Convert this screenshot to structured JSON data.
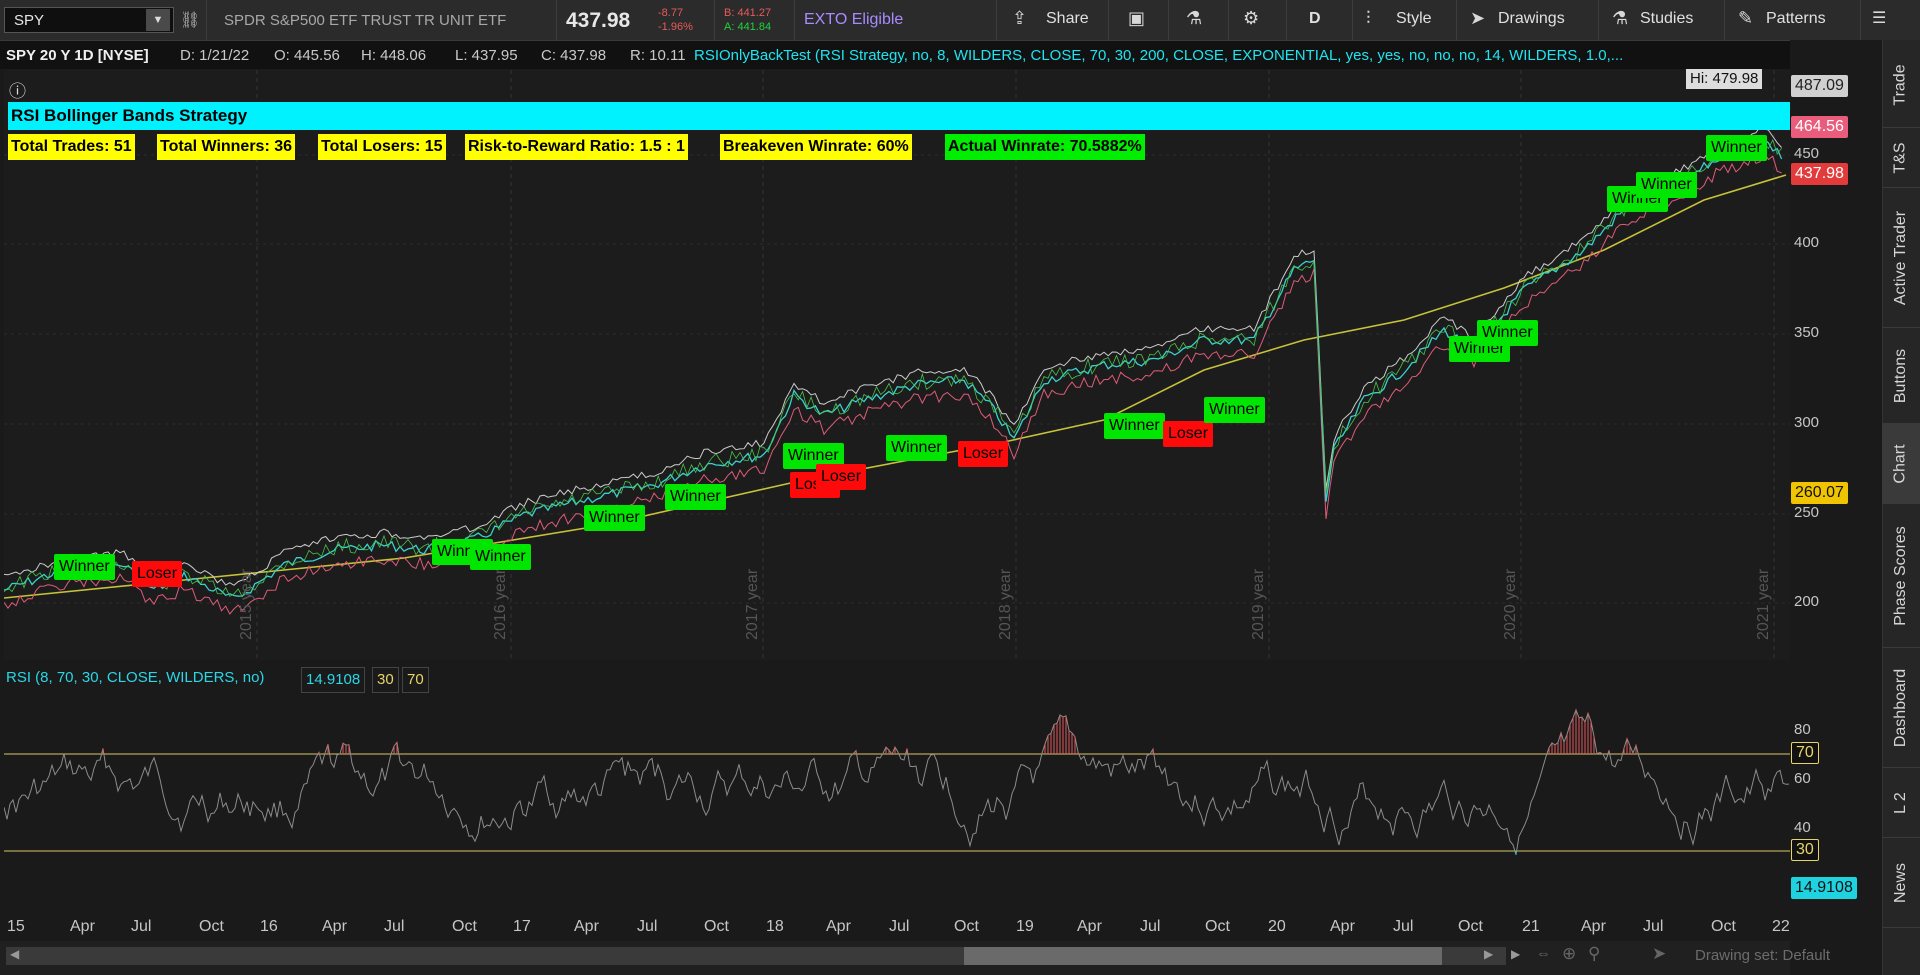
{
  "toolbar": {
    "symbol": "SPY",
    "description": "SPDR S&P500 ETF TRUST TR UNIT ETF",
    "last_price": "437.98",
    "net_change": "-8.77",
    "pct_change": "-1.96%",
    "bid": "B: 441.27",
    "ask": "A: 441.84",
    "exto": "EXTO Eligible",
    "share": "Share",
    "aggregation": "D",
    "style": "Style",
    "drawings": "Drawings",
    "studies": "Studies",
    "patterns": "Patterns",
    "colors": {
      "bid": "#e85a5a",
      "ask": "#1fd33e",
      "exto": "#a98bff"
    }
  },
  "info_line": {
    "symbol_period": "SPY 20 Y 1D [NYSE]",
    "date": "D: 1/21/22",
    "open": "O: 445.56",
    "high": "H: 448.06",
    "low": "L: 437.95",
    "close": "C: 437.98",
    "range": "R: 10.11",
    "strategy": "RSIOnlyBackTest (RSI Strategy, no, 8, WILDERS, CLOSE, 70, 30, 200, CLOSE, EXPONENTIAL, yes, yes, no, no, no, 14, WILDERS, 1.0,..."
  },
  "strategy_panel": {
    "title": "RSI Bollinger Bands Strategy",
    "stats": [
      "Total Trades: 51",
      "Total Winners: 36",
      "Total Losers: 15",
      "Risk-to-Reward Ratio: 1.5 : 1",
      "Breakeven Winrate: 60%",
      "Actual Winrate: 70.5882%"
    ],
    "colors": {
      "title_bg": "#00f2ff",
      "stat_bg": "#ffff00",
      "winrate_bg": "#00ee00"
    }
  },
  "price_axis": {
    "labels": [
      "450",
      "400",
      "350",
      "300",
      "250",
      "200"
    ],
    "hi_label": "Hi: 479.98",
    "tags": {
      "top": "487.09",
      "upper_band": "464.56",
      "last": "437.98",
      "ema": "260.07"
    }
  },
  "year_labels": [
    "2015 year",
    "2016 year",
    "2017 year",
    "2018 year",
    "2019 year",
    "2020 year",
    "2021 year"
  ],
  "trade_markers": [
    {
      "label": "Winner",
      "result": "win"
    },
    {
      "label": "Loser",
      "result": "loss"
    },
    {
      "label": "Winner",
      "result": "win"
    },
    {
      "label": "Winner",
      "result": "win"
    },
    {
      "label": "Winner",
      "result": "win"
    },
    {
      "label": "Winner",
      "result": "win"
    },
    {
      "label": "Winner",
      "result": "win"
    },
    {
      "label": "Loser",
      "result": "loss"
    },
    {
      "label": "Loser",
      "result": "loss"
    },
    {
      "label": "Winner",
      "result": "win"
    },
    {
      "label": "Loser",
      "result": "loss"
    },
    {
      "label": "Winner",
      "result": "win"
    },
    {
      "label": "Loser",
      "result": "loss"
    },
    {
      "label": "Winner",
      "result": "win"
    },
    {
      "label": "Winner",
      "result": "win"
    },
    {
      "label": "Winner",
      "result": "win"
    },
    {
      "label": "Winner",
      "result": "win"
    },
    {
      "label": "Winner",
      "result": "win"
    },
    {
      "label": "Winner",
      "result": "win"
    }
  ],
  "rsi": {
    "header": "RSI (8, 70, 30, CLOSE, WILDERS, no)",
    "value": "14.9108",
    "oversold": "30",
    "overbought": "70",
    "axis_labels": [
      "80",
      "60",
      "40"
    ],
    "tags": {
      "overbought": "70",
      "oversold": "30",
      "value": "14.9108"
    }
  },
  "time_axis": [
    "15",
    "Apr",
    "Jul",
    "Oct",
    "16",
    "Apr",
    "Jul",
    "Oct",
    "17",
    "Apr",
    "Jul",
    "Oct",
    "18",
    "Apr",
    "Jul",
    "Oct",
    "19",
    "Apr",
    "Jul",
    "Oct",
    "20",
    "Apr",
    "Jul",
    "Oct",
    "21",
    "Apr",
    "Jul",
    "Oct",
    "22"
  ],
  "bottom": {
    "drawing_set": "Drawing set: Default"
  },
  "side_tabs": [
    "Trade",
    "T&S",
    "Active Trader",
    "Buttons",
    "Chart",
    "Phase Scores",
    "Dashboard",
    "L 2",
    "News"
  ],
  "active_side_tab": "Chart"
}
